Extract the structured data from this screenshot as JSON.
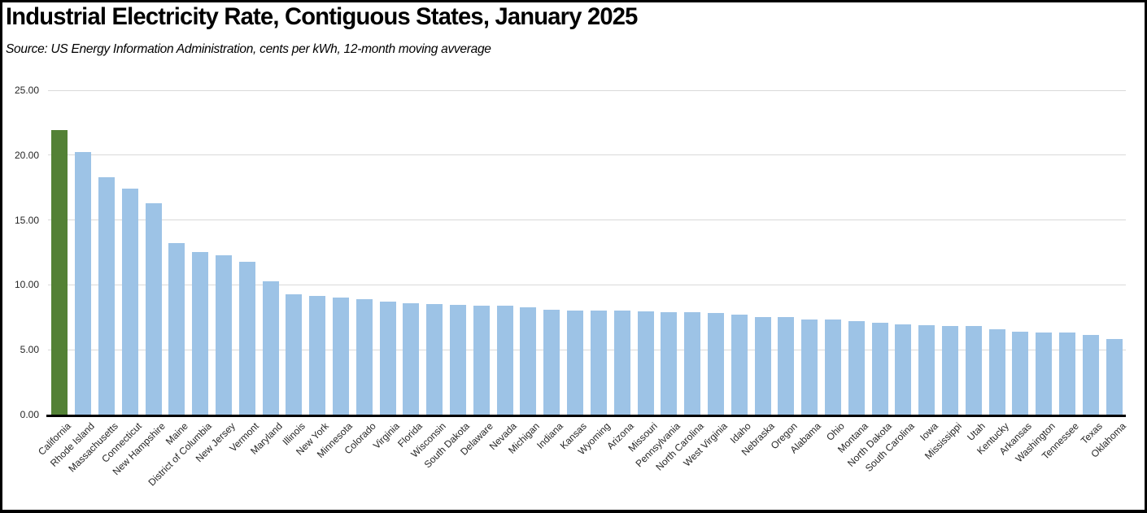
{
  "header": {
    "title": "Industrial Electricity Rate, Contiguous States, January 2025",
    "source_note": "Source:  US Energy Information Administration, cents per kWh, 12-month moving avverage"
  },
  "colors": {
    "highlight_bar": "#538135",
    "default_bar": "#9DC3E6",
    "gridline": "#D9D9D9",
    "axis_line": "#000000",
    "frame_border": "#000000",
    "tick_text": "#262626"
  },
  "chart_data": {
    "type": "bar",
    "title": "Industrial Electricity Rate, Contiguous States, January 2025",
    "subtitle": "Source:  US Energy Information Administration, cents per kWh, 12-month moving avverage",
    "unit": "cents per kWh",
    "xlabel": "",
    "ylabel": "",
    "ylim": [
      0,
      25
    ],
    "ytick_interval": 5,
    "ytick_labels": [
      "0.00",
      "5.00",
      "10.00",
      "15.00",
      "20.00",
      "25.00"
    ],
    "grid": true,
    "legend": false,
    "highlight_category": "California",
    "categories": [
      "California",
      "Rhode Island",
      "Massachusetts",
      "Connecticut",
      "New Hampshire",
      "Maine",
      "District of Columbia",
      "New Jersey",
      "Vermont",
      "Maryland",
      "Illinois",
      "New York",
      "Minnesota",
      "Colorado",
      "Virginia",
      "Florida",
      "Wisconsin",
      "South Dakota",
      "Delaware",
      "Nevada",
      "Michigan",
      "Indiana",
      "Kansas",
      "Wyoming",
      "Arizona",
      "Missouri",
      "Pennsylvania",
      "North Carolina",
      "West Virginia",
      "Idaho",
      "Nebraska",
      "Oregon",
      "Alabama",
      "Ohio",
      "Montana",
      "North Dakota",
      "South Carolina",
      "Iowa",
      "Mississippi",
      "Utah",
      "Kentucky",
      "Arkansas",
      "Washington",
      "Tennessee",
      "Texas",
      "Oklahoma"
    ],
    "values": [
      21.9,
      20.25,
      18.3,
      17.4,
      16.3,
      13.2,
      12.5,
      12.25,
      11.75,
      10.3,
      9.3,
      9.15,
      9.05,
      8.9,
      8.7,
      8.6,
      8.5,
      8.45,
      8.4,
      8.4,
      8.25,
      8.1,
      8.05,
      8.05,
      8.0,
      7.95,
      7.9,
      7.9,
      7.85,
      7.7,
      7.5,
      7.5,
      7.3,
      7.3,
      7.2,
      7.1,
      6.95,
      6.9,
      6.85,
      6.8,
      6.6,
      6.4,
      6.35,
      6.3,
      6.15,
      5.8
    ]
  }
}
